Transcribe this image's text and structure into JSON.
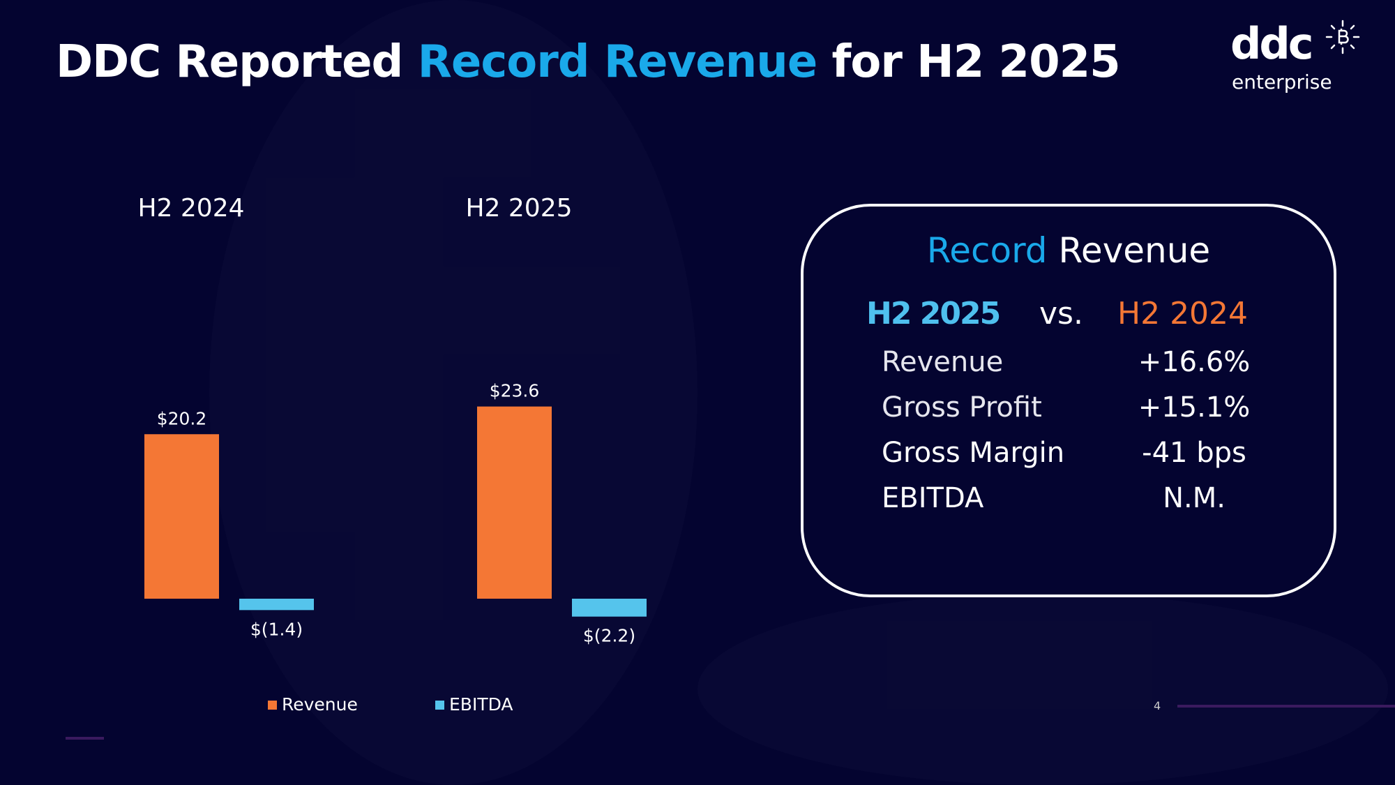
{
  "title": {
    "part1": "DDC Reported ",
    "highlight": "Record Revenue",
    "part2": " for H2 2025"
  },
  "logo": {
    "wordmark": "ddc",
    "sub": "enterprise",
    "icon": "bitcoin-sun-icon"
  },
  "colors": {
    "revenue": "#f47735",
    "ebitda": "#55c4ec",
    "accent": "#1aa9ea",
    "h2_2025": "#4fc0ee",
    "h2_2024": "#f47735"
  },
  "chart_data": {
    "type": "bar",
    "categories": [
      "H2 2024",
      "H2 2025"
    ],
    "series": [
      {
        "name": "Revenue",
        "values": [
          20.2,
          23.6
        ],
        "labels": [
          "$20.2",
          "$23.6"
        ]
      },
      {
        "name": "EBITDA",
        "values": [
          -1.4,
          -2.2
        ],
        "labels": [
          "$(1.4)",
          "$(2.2)"
        ]
      }
    ],
    "legend": "bottom",
    "grid": false
  },
  "summary": {
    "title_highlight": "Record",
    "title_rest": " Revenue",
    "current": "H2 2025",
    "vs": "vs.",
    "prior": "H2 2024",
    "rows": [
      {
        "label": "Revenue",
        "value": "+16.6%"
      },
      {
        "label": "Gross Profit",
        "value": "+15.1%"
      },
      {
        "label": "Gross Margin",
        "value": "-41 bps"
      },
      {
        "label": "EBITDA",
        "value": "N.M."
      }
    ]
  },
  "page_number": "4"
}
